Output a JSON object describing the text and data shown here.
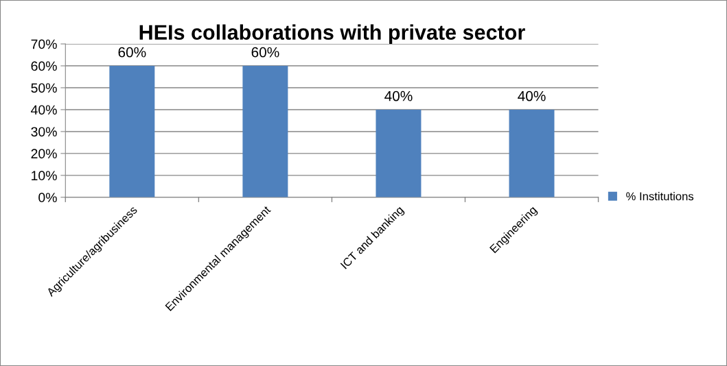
{
  "chart_data": {
    "type": "bar",
    "title": "HEIs collaborations with private sector",
    "categories": [
      "Agriculture/agribusiness",
      "Environmental management",
      "ICT and banking",
      "Engineering"
    ],
    "series": [
      {
        "name": "% Institutions",
        "color": "#4f81bd",
        "values": [
          60,
          60,
          40,
          40
        ],
        "value_labels": [
          "60%",
          "60%",
          "40%",
          "40%"
        ]
      }
    ],
    "ylim": [
      0,
      70
    ],
    "yticks": [
      {
        "value": 0,
        "label": "0%"
      },
      {
        "value": 10,
        "label": "10%"
      },
      {
        "value": 20,
        "label": "20%"
      },
      {
        "value": 30,
        "label": "30%"
      },
      {
        "value": 40,
        "label": "40%"
      },
      {
        "value": 50,
        "label": "50%"
      },
      {
        "value": 60,
        "label": "60%"
      },
      {
        "value": 70,
        "label": "70%"
      }
    ],
    "grid": "y",
    "legend": "right"
  }
}
